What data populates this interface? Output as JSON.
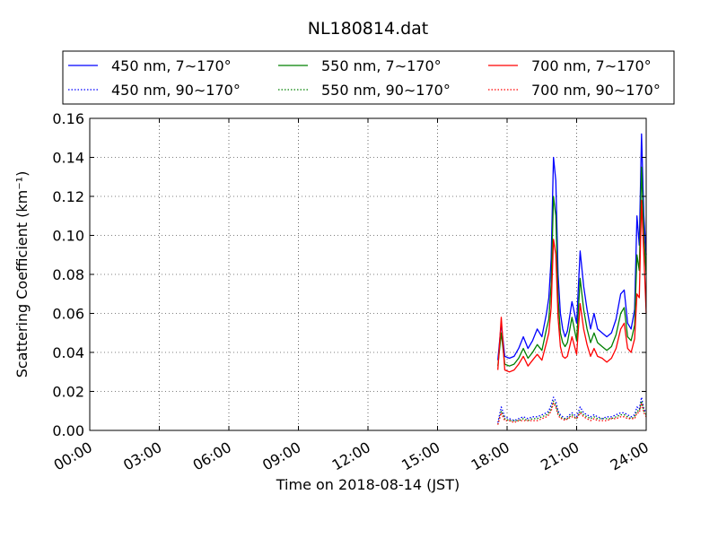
{
  "chart_data": {
    "type": "line",
    "title": "NL180814.dat",
    "xlabel": "Time on 2018-08-14 (JST)",
    "ylabel": "Scattering Coefficient (km⁻¹)",
    "x_unit": "hour",
    "xlim": [
      0,
      24
    ],
    "ylim": [
      0,
      0.16
    ],
    "x_ticks": [
      {
        "value": 0,
        "label": "00:00"
      },
      {
        "value": 3,
        "label": "03:00"
      },
      {
        "value": 6,
        "label": "06:00"
      },
      {
        "value": 9,
        "label": "09:00"
      },
      {
        "value": 12,
        "label": "12:00"
      },
      {
        "value": 15,
        "label": "15:00"
      },
      {
        "value": 18,
        "label": "18:00"
      },
      {
        "value": 21,
        "label": "21:00"
      },
      {
        "value": 24,
        "label": "24:00"
      }
    ],
    "y_ticks": [
      {
        "value": 0,
        "label": "0.00"
      },
      {
        "value": 0.02,
        "label": "0.02"
      },
      {
        "value": 0.04,
        "label": "0.04"
      },
      {
        "value": 0.06,
        "label": "0.06"
      },
      {
        "value": 0.08,
        "label": "0.08"
      },
      {
        "value": 0.1,
        "label": "0.10"
      },
      {
        "value": 0.12,
        "label": "0.12"
      },
      {
        "value": 0.14,
        "label": "0.14"
      },
      {
        "value": 0.16,
        "label": "0.16"
      }
    ],
    "grid": true,
    "legend_position": "top, above plot",
    "x": [
      17.6,
      17.75,
      17.9,
      18.1,
      18.3,
      18.5,
      18.7,
      18.9,
      19.1,
      19.3,
      19.5,
      19.7,
      19.8,
      19.9,
      20.0,
      20.1,
      20.2,
      20.3,
      20.4,
      20.5,
      20.6,
      20.8,
      21.0,
      21.15,
      21.3,
      21.45,
      21.6,
      21.75,
      21.9,
      22.1,
      22.3,
      22.5,
      22.7,
      22.9,
      23.05,
      23.2,
      23.35,
      23.5,
      23.6,
      23.7,
      23.8,
      23.9,
      24.0
    ],
    "series": [
      {
        "name": "450 nm, 7∼170°",
        "color": "#0000ff",
        "style": "solid",
        "values": [
          0.036,
          0.055,
          0.038,
          0.037,
          0.038,
          0.042,
          0.048,
          0.042,
          0.046,
          0.052,
          0.048,
          0.06,
          0.068,
          0.088,
          0.14,
          0.128,
          0.08,
          0.06,
          0.052,
          0.048,
          0.051,
          0.066,
          0.055,
          0.092,
          0.074,
          0.062,
          0.052,
          0.06,
          0.052,
          0.05,
          0.048,
          0.05,
          0.057,
          0.07,
          0.072,
          0.055,
          0.052,
          0.062,
          0.11,
          0.095,
          0.152,
          0.11,
          0.09
        ]
      },
      {
        "name": "550 nm, 7∼170°",
        "color": "#008000",
        "style": "solid",
        "values": [
          0.033,
          0.05,
          0.034,
          0.033,
          0.034,
          0.037,
          0.042,
          0.037,
          0.04,
          0.044,
          0.041,
          0.052,
          0.057,
          0.075,
          0.12,
          0.11,
          0.068,
          0.05,
          0.045,
          0.043,
          0.045,
          0.058,
          0.046,
          0.078,
          0.062,
          0.052,
          0.045,
          0.05,
          0.045,
          0.043,
          0.041,
          0.043,
          0.049,
          0.06,
          0.063,
          0.048,
          0.046,
          0.054,
          0.09,
          0.082,
          0.135,
          0.1,
          0.08
        ]
      },
      {
        "name": "700 nm, 7∼170°",
        "color": "#ff0000",
        "style": "solid",
        "values": [
          0.031,
          0.058,
          0.031,
          0.03,
          0.031,
          0.034,
          0.038,
          0.033,
          0.036,
          0.039,
          0.036,
          0.045,
          0.05,
          0.063,
          0.098,
          0.09,
          0.058,
          0.043,
          0.038,
          0.037,
          0.038,
          0.048,
          0.039,
          0.065,
          0.052,
          0.044,
          0.038,
          0.042,
          0.038,
          0.037,
          0.035,
          0.037,
          0.042,
          0.052,
          0.055,
          0.042,
          0.04,
          0.047,
          0.07,
          0.068,
          0.118,
          0.09,
          0.06
        ]
      },
      {
        "name": "450 nm, 90∼170°",
        "color": "#0000ff",
        "style": "dotted",
        "values": [
          0.004,
          0.012,
          0.007,
          0.006,
          0.005,
          0.006,
          0.007,
          0.006,
          0.007,
          0.007,
          0.008,
          0.009,
          0.01,
          0.013,
          0.017,
          0.015,
          0.01,
          0.008,
          0.007,
          0.006,
          0.007,
          0.009,
          0.007,
          0.012,
          0.009,
          0.008,
          0.007,
          0.008,
          0.007,
          0.006,
          0.007,
          0.007,
          0.008,
          0.009,
          0.009,
          0.008,
          0.007,
          0.008,
          0.012,
          0.011,
          0.017,
          0.011,
          0.009
        ]
      },
      {
        "name": "550 nm, 90∼170°",
        "color": "#008000",
        "style": "dotted",
        "values": [
          0.003,
          0.01,
          0.006,
          0.005,
          0.005,
          0.005,
          0.006,
          0.005,
          0.006,
          0.006,
          0.007,
          0.008,
          0.009,
          0.011,
          0.015,
          0.013,
          0.009,
          0.007,
          0.006,
          0.006,
          0.006,
          0.008,
          0.006,
          0.01,
          0.008,
          0.007,
          0.006,
          0.007,
          0.006,
          0.006,
          0.006,
          0.006,
          0.007,
          0.008,
          0.008,
          0.007,
          0.006,
          0.007,
          0.01,
          0.01,
          0.015,
          0.01,
          0.008
        ]
      },
      {
        "name": "700 nm, 90∼170°",
        "color": "#ff0000",
        "style": "dotted",
        "values": [
          0.003,
          0.009,
          0.005,
          0.005,
          0.004,
          0.005,
          0.005,
          0.005,
          0.005,
          0.005,
          0.006,
          0.007,
          0.008,
          0.01,
          0.014,
          0.012,
          0.008,
          0.006,
          0.006,
          0.005,
          0.006,
          0.007,
          0.006,
          0.009,
          0.007,
          0.006,
          0.005,
          0.006,
          0.005,
          0.005,
          0.005,
          0.006,
          0.006,
          0.007,
          0.007,
          0.006,
          0.006,
          0.006,
          0.009,
          0.009,
          0.014,
          0.009,
          0.007
        ]
      }
    ]
  }
}
